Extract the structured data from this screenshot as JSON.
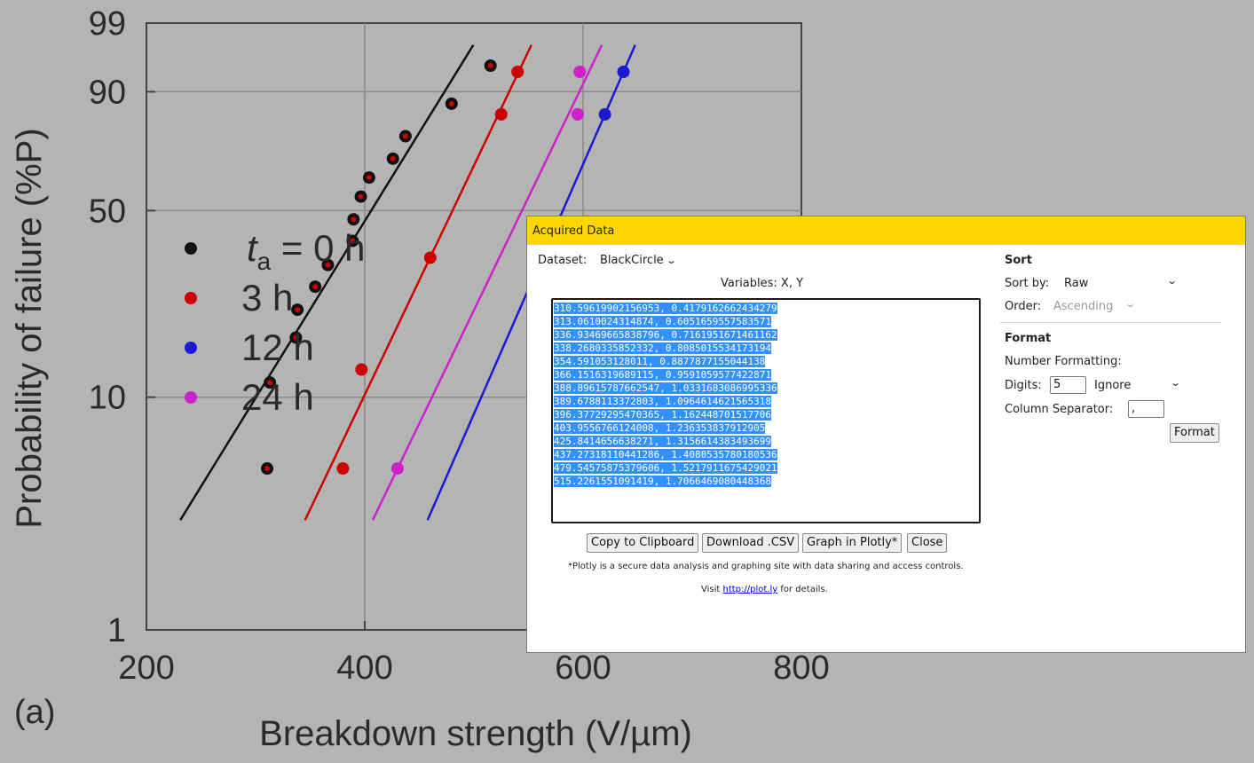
{
  "chart": {
    "x_ticks": [
      "200",
      "400",
      "600",
      "800"
    ],
    "y_ticks": [
      "99",
      "90",
      "50",
      "10",
      "1"
    ],
    "y_title": "Probability of  failure (%P)",
    "x_title": "Breakdown  strength (V/µm)",
    "panel_label": "(a)",
    "legend": [
      {
        "label_main": "t",
        "label_sub": "a",
        "label_rest": " = 0 h",
        "color": "#111111"
      },
      {
        "label": "3 h",
        "color": "#cc0000"
      },
      {
        "label": "12 h",
        "color": "#1a1ad0"
      },
      {
        "label": "24 h",
        "color": "#cc22cc"
      }
    ]
  },
  "chart_data": {
    "type": "scatter",
    "x_axis": "linear",
    "y_axis": "weibull probability",
    "xlim": [
      200,
      800
    ],
    "ylim": [
      1,
      99
    ],
    "series": [
      {
        "name": "0 h",
        "color": "#111111",
        "points": [
          [
            310.6,
            5
          ],
          [
            313.1,
            11.5
          ],
          [
            336.9,
            17.5
          ],
          [
            338.3,
            22.5
          ],
          [
            354.6,
            27.5
          ],
          [
            366.2,
            33
          ],
          [
            388.9,
            40
          ],
          [
            389.7,
            47
          ],
          [
            396.4,
            55
          ],
          [
            404.0,
            62
          ],
          [
            425.8,
            69
          ],
          [
            437.3,
            77
          ],
          [
            479.5,
            87
          ],
          [
            515.2,
            95
          ]
        ]
      },
      {
        "name": "3 h",
        "color": "#cc0000",
        "points": [
          [
            380,
            5
          ],
          [
            397,
            13
          ],
          [
            460,
            35
          ],
          [
            525,
            84
          ],
          [
            540,
            94
          ]
        ]
      },
      {
        "name": "12 h",
        "color": "#1a1ad0",
        "points": [
          [
            620,
            84
          ],
          [
            637,
            94
          ]
        ]
      },
      {
        "name": "24 h",
        "color": "#cc22cc",
        "points": [
          [
            430,
            5
          ],
          [
            595,
            84
          ],
          [
            597,
            94
          ]
        ]
      }
    ]
  },
  "dialog": {
    "title": "Acquired Data",
    "dataset_label": "Dataset:",
    "dataset_value": "BlackCircle",
    "variables": "Variables: X, Y",
    "rows": [
      "310.59619902156953, 0.4179162662434279",
      "313.0610024314874, 0.6051659557583571",
      "336.93469665838796, 0.7161951671461162",
      "338.2680335852332, 0.8085015534173194",
      "354.591053128011, 0.8877877155044138",
      "366.1516319689115, 0.9591059577422871",
      "388.89615787662547, 1.0331683086995336",
      "389.6788113372803, 1.0964614621565318",
      "396.37729295470365, 1.162448701517706",
      "403.9556766124008, 1.236353837912905",
      "425.8414656638271, 1.3156614383493699",
      "437.27318110441286, 1.4080535780180536",
      "479.54575875379606, 1.5217911675429021",
      "515.2261551091419, 1.7066469080448368"
    ],
    "buttons": {
      "copy": "Copy to Clipboard",
      "download": "Download .CSV",
      "plotly": "Graph in Plotly*",
      "close": "Close"
    },
    "plotly_note": "*Plotly is a secure data analysis and graphing site with data sharing and access controls.",
    "visit_prefix": "Visit ",
    "visit_link": "http://plot.ly",
    "visit_suffix": " for details.",
    "sort": {
      "heading": "Sort",
      "sort_by_label": "Sort by:",
      "sort_by_value": "Raw",
      "order_label": "Order:",
      "order_value": "Ascending"
    },
    "format": {
      "heading": "Format",
      "number_formatting_label": "Number Formatting:",
      "digits_label": "Digits:",
      "digits_value": "5",
      "digits_mode": "Ignore",
      "column_separator_label": "Column Separator:",
      "column_separator_value": ",",
      "format_button": "Format"
    }
  }
}
